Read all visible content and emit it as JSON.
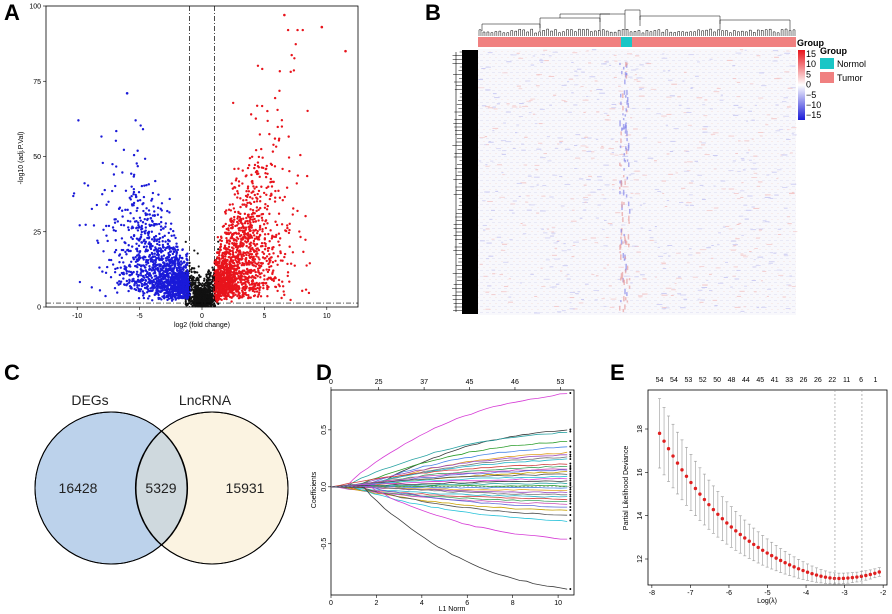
{
  "panels": {
    "A": "A",
    "B": "B",
    "C": "C",
    "D": "D",
    "E": "E"
  },
  "colors": {
    "up": "#e8141c",
    "down": "#1a1ad8",
    "ns": "#111111",
    "normal": "#19c6c6",
    "tumor": "#f08080",
    "venn_left": "#bcd2eb",
    "venn_right": "#fbf3e1",
    "venn_overlap": "#cfd9de",
    "lasso_point": "#e02020"
  },
  "chart_data": [
    {
      "panel": "A",
      "type": "scatter",
      "title": "",
      "xlabel": "log2 (fold change)",
      "ylabel": "-log10 (adj.P.Val)",
      "xlim": [
        -12.5,
        12.5
      ],
      "ylim": [
        0,
        100
      ],
      "xticks": [
        "-10",
        "-5",
        "0",
        "5",
        "10"
      ],
      "yticks": [
        "0",
        "25",
        "50",
        "75",
        "100"
      ],
      "thresholds": {
        "logfc": 1,
        "neglog10p": 1.3
      },
      "series": [
        {
          "name": "down",
          "x_range": [
            -11,
            -1
          ],
          "y_max": 71
        },
        {
          "name": "up",
          "x_range": [
            1,
            11
          ],
          "y_max": 97
        }
      ]
    },
    {
      "panel": "B",
      "type": "heatmap",
      "title": "",
      "legend_title": "Group",
      "colorbar_title": "Group",
      "colorbar_ticks": [
        "15",
        "10",
        "5",
        "0",
        "−5",
        "−10",
        "−15"
      ],
      "groups": [
        {
          "name": "Normol"
        },
        {
          "name": "Tumor"
        }
      ]
    },
    {
      "panel": "C",
      "type": "venn",
      "sets": [
        {
          "name": "DEGs",
          "only": 16428
        },
        {
          "name": "LncRNA",
          "only": 15931
        }
      ],
      "intersection": 5329,
      "labels": {
        "left": "DEGs",
        "right": "LncRNA",
        "left_only": "16428",
        "both": "5329",
        "right_only": "15931"
      }
    },
    {
      "panel": "D",
      "type": "line",
      "title": "",
      "xlabel": "L1 Norm",
      "ylabel": "Coefficients",
      "xlim": [
        0,
        10.7
      ],
      "ylim": [
        -0.95,
        0.85
      ],
      "xticks": [
        "0",
        "2",
        "4",
        "6",
        "8",
        "10"
      ],
      "yticks": [
        "-0.5",
        "0.0",
        "0.5"
      ],
      "top_ticks": [
        "0",
        "25",
        "37",
        "45",
        "46",
        "53"
      ],
      "series_endpoints": [
        0.82,
        0.5,
        0.48,
        0.4,
        0.35,
        0.3,
        0.28,
        0.26,
        0.24,
        0.2,
        0.18,
        0.16,
        0.15,
        0.13,
        0.11,
        0.09,
        0.07,
        0.05,
        0.03,
        0.01,
        -0.01,
        -0.03,
        -0.05,
        -0.07,
        -0.09,
        -0.11,
        -0.13,
        -0.15,
        -0.18,
        -0.21,
        -0.25,
        -0.3,
        -0.46,
        -0.9
      ]
    },
    {
      "panel": "E",
      "type": "scatter",
      "title": "",
      "xlabel": "Log(λ)",
      "ylabel": "Partial Likelihood Deviance",
      "xlim": [
        -8.1,
        -1.9
      ],
      "ylim": [
        10.8,
        19.8
      ],
      "xticks": [
        "-8",
        "-7",
        "-6",
        "-5",
        "-4",
        "-3",
        "-2"
      ],
      "yticks": [
        "12",
        "14",
        "16",
        "18"
      ],
      "top_ticks": [
        "54",
        "54",
        "53",
        "52",
        "50",
        "48",
        "44",
        "45",
        "41",
        "33",
        "26",
        "26",
        "22",
        "11",
        "6",
        "1"
      ],
      "vlines": [
        -3.25,
        -2.55
      ],
      "start": {
        "loglambda": -7.8,
        "deviance": 17.8,
        "err": 1.6
      },
      "min": {
        "loglambda": -3.2,
        "deviance": 11.1,
        "err": 0.25
      },
      "end": {
        "loglambda": -2.1,
        "deviance": 11.4,
        "err": 0.2
      }
    }
  ]
}
